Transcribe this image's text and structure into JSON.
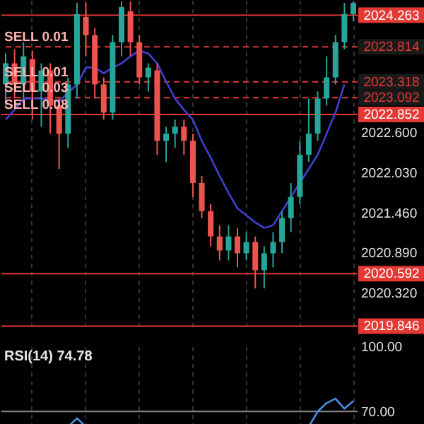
{
  "chart_data": [
    {
      "type": "candlestick",
      "categories": [
        null,
        null,
        null,
        null,
        null,
        null,
        null,
        null,
        null,
        null,
        null,
        null,
        null,
        null,
        null,
        null,
        null,
        null,
        null,
        null,
        null,
        null,
        null,
        null,
        null,
        null,
        null,
        null,
        null,
        null,
        null,
        null,
        null,
        null,
        null,
        null,
        null,
        null,
        null,
        null
      ],
      "ohlc": [
        [
          2023.28,
          2023.72,
          2022.98,
          2023.58
        ],
        [
          2023.58,
          2023.78,
          2023.08,
          2023.28
        ],
        [
          2023.28,
          2023.88,
          2023.08,
          2023.68
        ],
        [
          2023.64,
          2023.76,
          2022.78,
          2023.18
        ],
        [
          2023.18,
          2023.58,
          2022.68,
          2023.48
        ],
        [
          2023.48,
          2023.58,
          2022.58,
          2022.98
        ],
        [
          2022.98,
          2023.08,
          2022.08,
          2022.58
        ],
        [
          2022.58,
          2023.38,
          2022.38,
          2023.28
        ],
        [
          2023.28,
          2024.44,
          2023.08,
          2024.28
        ],
        [
          2024.24,
          2024.44,
          2023.68,
          2023.98
        ],
        [
          2023.98,
          2024.08,
          2023.08,
          2023.28
        ],
        [
          2023.28,
          2023.38,
          2022.78,
          2022.88
        ],
        [
          2022.88,
          2023.98,
          2022.78,
          2023.88
        ],
        [
          2023.88,
          2024.46,
          2023.68,
          2024.38
        ],
        [
          2024.32,
          2024.46,
          2023.68,
          2023.88
        ],
        [
          2023.88,
          2023.98,
          2023.28,
          2023.38
        ],
        [
          2023.38,
          2023.58,
          2023.18,
          2023.52
        ],
        [
          2023.48,
          2023.58,
          2022.28,
          2022.48
        ],
        [
          2022.48,
          2022.68,
          2022.18,
          2022.58
        ],
        [
          2022.58,
          2022.78,
          2022.38,
          2022.68
        ],
        [
          2022.68,
          2022.78,
          2022.28,
          2022.48
        ],
        [
          2022.48,
          2022.58,
          2021.68,
          2021.88
        ],
        [
          2021.88,
          2021.98,
          2021.38,
          2021.48
        ],
        [
          2021.48,
          2021.58,
          2020.98,
          2021.12
        ],
        [
          2021.12,
          2021.28,
          2020.78,
          2020.92
        ],
        [
          2020.92,
          2021.28,
          2020.78,
          2021.12
        ],
        [
          2021.12,
          2021.24,
          2020.68,
          2020.88
        ],
        [
          2020.88,
          2021.18,
          2020.78,
          2021.04
        ],
        [
          2021.04,
          2021.12,
          2020.38,
          2020.64
        ],
        [
          2020.64,
          2020.98,
          2020.38,
          2020.88
        ],
        [
          2020.88,
          2021.18,
          2020.68,
          2021.04
        ],
        [
          2021.04,
          2021.48,
          2020.88,
          2021.38
        ],
        [
          2021.38,
          2021.88,
          2021.18,
          2021.68
        ],
        [
          2021.68,
          2022.48,
          2021.58,
          2022.28
        ],
        [
          2022.28,
          2023.08,
          2022.18,
          2022.58
        ],
        [
          2022.58,
          2023.18,
          2022.48,
          2023.08
        ],
        [
          2023.08,
          2023.68,
          2022.98,
          2023.38
        ],
        [
          2023.38,
          2023.98,
          2023.28,
          2023.88
        ],
        [
          2023.88,
          2024.44,
          2023.78,
          2024.28
        ],
        [
          2024.28,
          2024.46,
          2024.18,
          2024.44
        ]
      ],
      "colors": [
        "#26a69a",
        "#ef5350",
        "#26a69a",
        "#ef5350",
        "#26a69a",
        "#ef5350",
        "#ef5350",
        "#26a69a",
        "#26a69a",
        "#ef5350",
        "#ef5350",
        "#ef5350",
        "#26a69a",
        "#26a69a",
        "#ef5350",
        "#ef5350",
        "#26a69a",
        "#ef5350",
        "#26a69a",
        "#26a69a",
        "#ef5350",
        "#ef5350",
        "#ef5350",
        "#ef5350",
        "#ef5350",
        "#26a69a",
        "#ef5350",
        "#26a69a",
        "#ef5350",
        "#26a69a",
        "#26a69a",
        "#26a69a",
        "#26a69a",
        "#26a69a",
        "#26a69a",
        "#26a69a",
        "#26a69a",
        "#26a69a",
        "#26a69a",
        "#26a69a"
      ],
      "series": [
        {
          "type": "line",
          "color": "#4040d0",
          "values": [
            2022.78,
            2022.92,
            2023.08,
            2023.08,
            2023.08,
            2023.06,
            2023.04,
            2023.16,
            2023.28,
            2023.52,
            2023.52,
            2023.44,
            2023.52,
            2023.58,
            2023.68,
            2023.76,
            2023.72,
            2023.58,
            2023.32,
            2023.08,
            2022.92,
            2022.78,
            2022.48,
            2022.24,
            2021.98,
            2021.74,
            2021.52,
            2021.42,
            2021.32,
            2021.24,
            2021.28,
            2021.48,
            2021.68,
            2021.88,
            2022.08,
            2022.28,
            2022.58,
            2022.88,
            2023.28,
            null
          ]
        }
      ],
      "ylim": [
        2019.78,
        2024.48
      ],
      "yticks": [
        {
          "value": 2022.6,
          "label": "2022.600"
        },
        {
          "value": 2022.03,
          "label": "2022.030"
        },
        {
          "value": 2021.46,
          "label": "2021.460"
        },
        {
          "value": 2020.89,
          "label": "2020.890"
        },
        {
          "value": 2020.32,
          "label": "2020.320"
        }
      ],
      "ref_lines": [
        {
          "axis": "y",
          "value": 2024.263,
          "label": null,
          "color": "#e53935",
          "line_style": "solid"
        },
        {
          "axis": "y",
          "value": 2023.814,
          "label": "SELL 0.01",
          "color": "#e53935",
          "line_style": "dashed"
        },
        {
          "axis": "y",
          "value": 2023.318,
          "label": "SELL 0.01",
          "color": "#e53935",
          "line_style": "dashed"
        },
        {
          "axis": "y",
          "value": 2023.092,
          "label": "SELL 0.03",
          "color": "#e53935",
          "line_style": "dashed"
        },
        {
          "axis": "y",
          "value": 2022.852,
          "label": "SELL 0.08",
          "color": "#e53935",
          "line_style": "solid"
        },
        {
          "axis": "y",
          "value": 2020.592,
          "label": null,
          "color": "#e53935",
          "line_style": "solid"
        },
        {
          "axis": "y",
          "value": 2019.846,
          "label": null,
          "color": "#e53935",
          "line_style": "solid"
        }
      ],
      "annotations": [
        "2024.263",
        "2023.814",
        "2023.318",
        "2023.092",
        "2022.852",
        "2020.592",
        "2019.846"
      ],
      "grid": "x"
    },
    {
      "type": "line",
      "title": "RSI(14) 74.78",
      "categories": [
        null,
        null,
        null,
        null,
        null,
        null,
        null,
        null,
        null,
        null,
        null,
        null,
        null,
        null,
        null,
        null,
        null,
        null,
        null,
        null,
        null,
        null,
        null,
        null,
        null,
        null,
        null,
        null,
        null,
        null,
        null,
        null,
        null,
        null,
        null,
        null,
        null,
        null,
        null,
        null
      ],
      "series": [
        {
          "color": "#4a90e2",
          "values": [
            null,
            null,
            null,
            null,
            null,
            null,
            null,
            63,
            66.9,
            63,
            null,
            null,
            null,
            null,
            null,
            null,
            null,
            null,
            null,
            null,
            null,
            null,
            null,
            null,
            null,
            null,
            null,
            null,
            null,
            null,
            null,
            null,
            null,
            null,
            63,
            70,
            73.9,
            75.9,
            71.3,
            74.8
          ]
        }
      ],
      "ylim": [
        61,
        100
      ],
      "yticks": [
        {
          "value": 100,
          "label": "100.00"
        },
        {
          "value": 70,
          "label": "70.00"
        }
      ],
      "ref_lines": [
        {
          "axis": "y",
          "value": 70,
          "color": "#888888",
          "line_style": "solid"
        }
      ],
      "grid": "x"
    }
  ]
}
